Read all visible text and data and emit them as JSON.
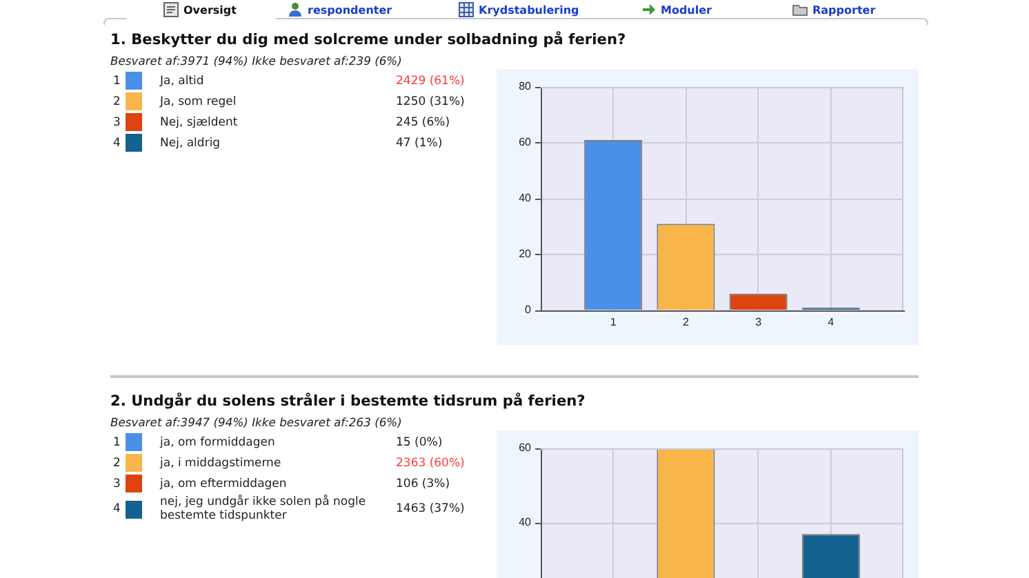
{
  "chart_data": [
    {
      "type": "other",
      "annotations": [
        "Oversigt",
        "respondenter",
        "Krydstabulering",
        "Moduler",
        "Rapporter"
      ]
    },
    {
      "type": "bar",
      "title": "1. Beskytter du dig med solcreme under solbadning på ferien?",
      "categories": [
        "1",
        "2",
        "3",
        "4"
      ],
      "series": [
        {
          "name": "Ja, altid",
          "color": "#4a90e8",
          "values": [
            61,
            null,
            null,
            null
          ]
        },
        {
          "name": "Ja, som regel",
          "color": "#f9b54a",
          "values": [
            null,
            31,
            null,
            null
          ]
        },
        {
          "name": "Nej, sjældent",
          "color": "#de4310",
          "values": [
            null,
            null,
            6,
            null
          ]
        },
        {
          "name": "Nej, aldrig",
          "color": "#13628f",
          "values": [
            null,
            null,
            null,
            1
          ]
        }
      ],
      "annotations": [
        "Besvaret af:3971 (94%) Ikke besvaret af:239 (6%)",
        "2429 (61%)",
        "1250 (31%)",
        "245 (6%)",
        "47 (1%)"
      ],
      "ylim": [
        0,
        80
      ],
      "yticks": [
        0,
        20,
        40,
        60,
        80
      ],
      "grid": true,
      "legend": "left"
    },
    {
      "type": "bar",
      "title": "2. Undgår du solens stråler i bestemte tidsrum på ferien?",
      "categories": [
        "1",
        "2",
        "3",
        "4"
      ],
      "series": [
        {
          "name": "ja, om formiddagen",
          "color": "#4a90e8",
          "values": [
            null,
            null,
            null,
            null
          ]
        },
        {
          "name": "ja, i middagstimerne",
          "color": "#f9b54a",
          "values": [
            null,
            60,
            null,
            null
          ]
        },
        {
          "name": "ja, om eftermiddagen",
          "color": "#de4310",
          "values": [
            null,
            null,
            null,
            null
          ]
        },
        {
          "name": "nej, jeg undgår ikke solen på nogle bestemte tidspunkter",
          "color": "#13628f",
          "values": [
            null,
            null,
            null,
            37
          ]
        }
      ],
      "annotations": [
        "Besvaret af:3947 (94%) Ikke besvaret af:263 (6%)",
        "15 (0%)",
        "2363 (60%)",
        "106 (3%)",
        "1463 (37%)"
      ],
      "ylim": [
        0,
        60
      ],
      "yticks": [
        40,
        60
      ],
      "grid": true,
      "legend": "left",
      "tick_labels": "y"
    }
  ]
}
